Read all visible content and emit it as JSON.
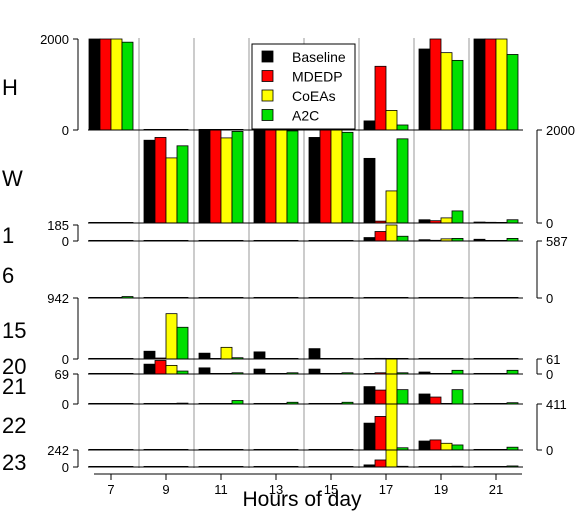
{
  "chart_data": {
    "type": "bar",
    "xlabel": "Hours of day",
    "x_tick_labels": [
      "7",
      "9",
      "11",
      "13",
      "15",
      "17",
      "19",
      "21"
    ],
    "hours": [
      7,
      9,
      11,
      13,
      15,
      17,
      19,
      21
    ],
    "legend": {
      "position": "top-center",
      "entries": [
        {
          "name": "Baseline",
          "color": "#000000"
        },
        {
          "name": "MDEDP",
          "color": "#ff0000"
        },
        {
          "name": "CoEAs",
          "color": "#ffff00"
        },
        {
          "name": "A2C",
          "color": "#00e000"
        }
      ]
    },
    "grid": {
      "vertical_lines": true,
      "color": "#cccccc"
    },
    "panels": [
      {
        "label": "H",
        "axis_side": "left",
        "ylim": [
          0,
          2000
        ],
        "tick_labels": [
          "0",
          "2000"
        ],
        "series": [
          {
            "name": "Baseline",
            "values": [
              2000,
              0,
              0,
              0,
              0,
              200,
              1780,
              2000
            ]
          },
          {
            "name": "MDEDP",
            "values": [
              2000,
              5,
              0,
              0,
              0,
              1400,
              2000,
              2000
            ]
          },
          {
            "name": "CoEAs",
            "values": [
              2000,
              5,
              0,
              0,
              0,
              430,
              1700,
              2000
            ]
          },
          {
            "name": "A2C",
            "values": [
              1930,
              5,
              0,
              0,
              0,
              110,
              1530,
              1660
            ]
          }
        ]
      },
      {
        "label": "W",
        "axis_side": "right",
        "ylim": [
          0,
          2000
        ],
        "tick_labels": [
          "0",
          "2000"
        ],
        "series": [
          {
            "name": "Baseline",
            "values": [
              0,
              1780,
              2000,
              2000,
              1840,
              1390,
              70,
              20
            ]
          },
          {
            "name": "MDEDP",
            "values": [
              0,
              1840,
              2000,
              2000,
              2000,
              40,
              50,
              15
            ]
          },
          {
            "name": "CoEAs",
            "values": [
              0,
              1400,
              1830,
              2000,
              2000,
              690,
              110,
              10
            ]
          },
          {
            "name": "A2C",
            "values": [
              5,
              1660,
              1970,
              1980,
              1950,
              1810,
              260,
              70
            ]
          }
        ]
      },
      {
        "label": "1",
        "axis_side": "left",
        "ylim": [
          0,
          185
        ],
        "tick_labels": [
          "0",
          "185"
        ],
        "series": [
          {
            "name": "Baseline",
            "values": [
              1,
              1,
              1,
              1,
              1,
              40,
              15,
              20
            ]
          },
          {
            "name": "MDEDP",
            "values": [
              1,
              1,
              1,
              1,
              1,
              110,
              8,
              5
            ]
          },
          {
            "name": "CoEAs",
            "values": [
              1,
              1,
              1,
              1,
              1,
              185,
              25,
              5
            ]
          },
          {
            "name": "A2C",
            "values": [
              1,
              1,
              2,
              4,
              4,
              55,
              30,
              30
            ]
          }
        ]
      },
      {
        "label": "6",
        "axis_side": "right",
        "ylim": [
          0,
          587
        ],
        "tick_labels": [
          "0",
          "587"
        ],
        "series": [
          {
            "name": "Baseline",
            "values": [
              1,
              1,
              1,
              1,
              1,
              1,
              1,
              1
            ]
          },
          {
            "name": "MDEDP",
            "values": [
              1,
              1,
              1,
              1,
              1,
              1,
              1,
              1
            ]
          },
          {
            "name": "CoEAs",
            "values": [
              1,
              1,
              1,
              1,
              1,
              1,
              1,
              1
            ]
          },
          {
            "name": "A2C",
            "values": [
              15,
              1,
              1,
              1,
              1,
              1,
              1,
              1
            ]
          }
        ]
      },
      {
        "label": "15",
        "axis_side": "left",
        "ylim": [
          0,
          942
        ],
        "tick_labels": [
          "0",
          "942"
        ],
        "series": [
          {
            "name": "Baseline",
            "values": [
              1,
              120,
              90,
              110,
              160,
              1,
              1,
              1
            ]
          },
          {
            "name": "MDEDP",
            "values": [
              1,
              15,
              5,
              5,
              5,
              10,
              1,
              1
            ]
          },
          {
            "name": "CoEAs",
            "values": [
              1,
              700,
              180,
              5,
              5,
              5,
              1,
              1
            ]
          },
          {
            "name": "A2C",
            "values": [
              1,
              490,
              20,
              5,
              5,
              5,
              1,
              1
            ]
          }
        ]
      },
      {
        "label": "20",
        "axis_side": "right",
        "ylim": [
          0,
          61
        ],
        "tick_labels": [
          "0",
          "61"
        ],
        "series": [
          {
            "name": "Baseline",
            "values": [
              1,
              40,
              25,
              20,
              20,
              2,
              8,
              1
            ]
          },
          {
            "name": "MDEDP",
            "values": [
              1,
              55,
              1,
              1,
              1,
              5,
              1,
              1
            ]
          },
          {
            "name": "CoEAs",
            "values": [
              1,
              35,
              1,
              1,
              1,
              61,
              1,
              1
            ]
          },
          {
            "name": "A2C",
            "values": [
              1,
              12,
              5,
              5,
              5,
              5,
              15,
              15
            ]
          }
        ]
      },
      {
        "label": "21",
        "axis_side": "left",
        "ylim": [
          0,
          69
        ],
        "tick_labels": [
          "0",
          "69"
        ],
        "series": [
          {
            "name": "Baseline",
            "values": [
              1,
              1,
              1,
              1,
              1,
              40,
              23,
              1
            ]
          },
          {
            "name": "MDEDP",
            "values": [
              1,
              1,
              1,
              1,
              1,
              32,
              16,
              1
            ]
          },
          {
            "name": "CoEAs",
            "values": [
              1,
              1,
              1,
              1,
              1,
              69,
              1,
              1
            ]
          },
          {
            "name": "A2C",
            "values": [
              1,
              2,
              8,
              4,
              4,
              33,
              33,
              3
            ]
          }
        ]
      },
      {
        "label": "22",
        "axis_side": "right",
        "ylim": [
          0,
          411
        ],
        "tick_labels": [
          "0",
          "411"
        ],
        "series": [
          {
            "name": "Baseline",
            "values": [
              1,
              1,
              1,
              1,
              1,
              240,
              80,
              1
            ]
          },
          {
            "name": "MDEDP",
            "values": [
              1,
              1,
              1,
              1,
              1,
              300,
              90,
              1
            ]
          },
          {
            "name": "CoEAs",
            "values": [
              1,
              1,
              1,
              1,
              1,
              411,
              60,
              1
            ]
          },
          {
            "name": "A2C",
            "values": [
              1,
              1,
              1,
              1,
              1,
              20,
              45,
              25
            ]
          }
        ]
      },
      {
        "label": "23",
        "axis_side": "left",
        "ylim": [
          0,
          242
        ],
        "tick_labels": [
          "0",
          "242"
        ],
        "series": [
          {
            "name": "Baseline",
            "values": [
              1,
              1,
              1,
              1,
              1,
              30,
              5,
              5
            ]
          },
          {
            "name": "MDEDP",
            "values": [
              1,
              1,
              1,
              1,
              1,
              100,
              1,
              1
            ]
          },
          {
            "name": "CoEAs",
            "values": [
              1,
              1,
              1,
              1,
              1,
              242,
              1,
              1
            ]
          },
          {
            "name": "A2C",
            "values": [
              1,
              1,
              2,
              2,
              2,
              10,
              10,
              15
            ]
          }
        ]
      }
    ]
  }
}
